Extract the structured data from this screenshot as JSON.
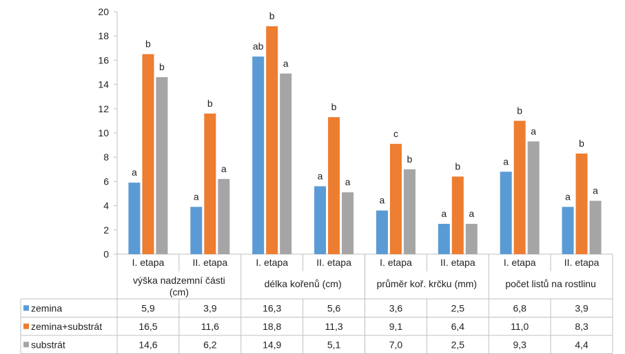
{
  "chart_data": {
    "type": "bar",
    "ylim": [
      0,
      20
    ],
    "yticks": [
      0,
      2,
      4,
      6,
      8,
      10,
      12,
      14,
      16,
      18,
      20
    ],
    "groups": [
      {
        "label_lines": [
          "výška nadzemní části",
          "(cm)"
        ],
        "subcategories": [
          "I. etapa",
          "II. etapa"
        ]
      },
      {
        "label_lines": [
          "délka kořenů (cm)"
        ],
        "subcategories": [
          "I. etapa",
          "II. etapa"
        ]
      },
      {
        "label_lines": [
          "průměr koř. krčku (mm)"
        ],
        "subcategories": [
          "I. etapa",
          "II. etapa"
        ]
      },
      {
        "label_lines": [
          "počet listů na rostlinu"
        ],
        "subcategories": [
          "I. etapa",
          "II. etapa"
        ]
      }
    ],
    "series": [
      {
        "name": "zemina",
        "color": "#5b9bd5",
        "values": [
          5.9,
          3.9,
          16.3,
          5.6,
          3.6,
          2.5,
          6.8,
          3.9
        ],
        "display": [
          "5,9",
          "3,9",
          "16,3",
          "5,6",
          "3,6",
          "2,5",
          "6,8",
          "3,9"
        ],
        "letters": [
          "a",
          "a",
          "ab",
          "a",
          "a",
          "a",
          "a",
          "a"
        ]
      },
      {
        "name": "zemina+substrát",
        "color": "#ed7d31",
        "values": [
          16.5,
          11.6,
          18.8,
          11.3,
          9.1,
          6.4,
          11.0,
          8.3
        ],
        "display": [
          "16,5",
          "11,6",
          "18,8",
          "11,3",
          "9,1",
          "6,4",
          "11,0",
          "8,3"
        ],
        "letters": [
          "b",
          "b",
          "b",
          "b",
          "c",
          "b",
          "b",
          "b"
        ]
      },
      {
        "name": "substrát",
        "color": "#a5a5a5",
        "values": [
          14.6,
          6.2,
          14.9,
          5.1,
          7.0,
          2.5,
          9.3,
          4.4
        ],
        "display": [
          "14,6",
          "6,2",
          "14,9",
          "5,1",
          "7,0",
          "2,5",
          "9,3",
          "4,4"
        ],
        "letters": [
          "b",
          "a",
          "a",
          "a",
          "b",
          "a",
          "a",
          "a"
        ]
      }
    ],
    "grid": false,
    "legend": "data-table"
  }
}
